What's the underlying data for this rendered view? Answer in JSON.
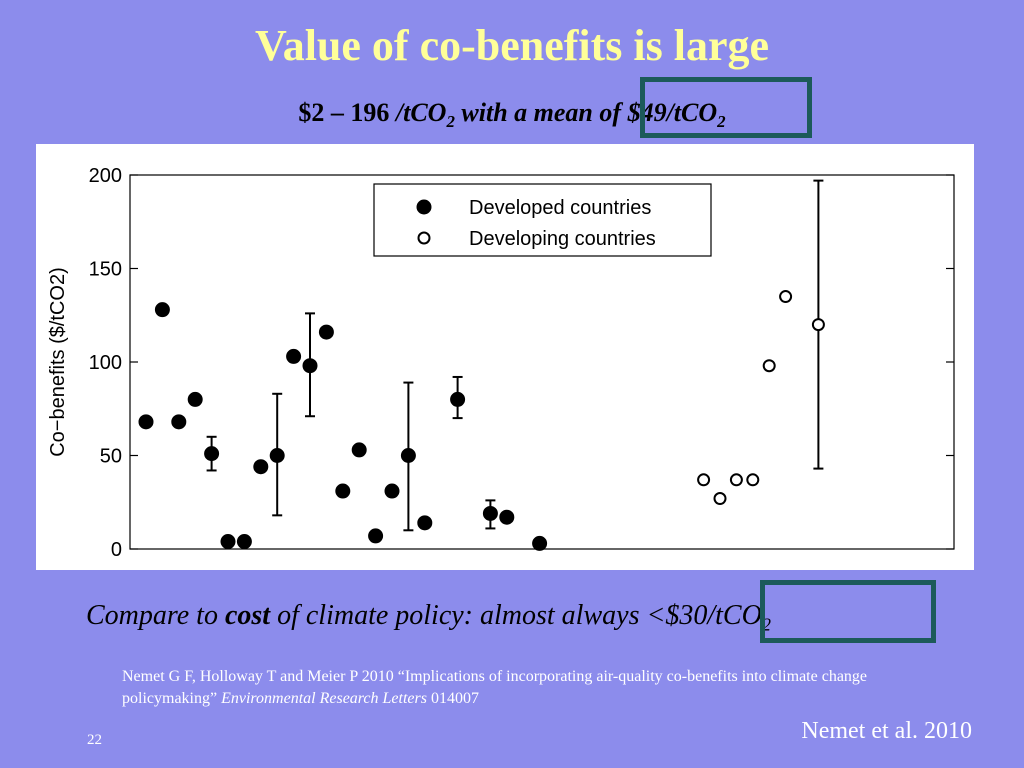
{
  "slide": {
    "title": "Value of co-benefits is large",
    "subtitle": {
      "range": "$2 – 196",
      "unit_1": " /tCO",
      "sub": "2",
      "middle": " with a mean of ",
      "mean": "$49/tCO",
      "mean_sub": "2"
    },
    "compare": {
      "prefix": "Compare to ",
      "bold": "cost",
      "middle": " of climate policy: almost always ",
      "value": "<$30/tCO",
      "value_sub": "2"
    },
    "citation": {
      "text": "Nemet G F, Holloway T and Meier P 2010 “Implications of incorporating air-quality co-benefits into climate change policymaking” ",
      "journal": "Environmental Research Letters",
      "number": "014007"
    },
    "attribution": "Nemet et al. 2010",
    "page_number": "22",
    "colors": {
      "background": "#8c8cec",
      "title": "#ffff99",
      "highlight_box": "#1c5a5a"
    }
  },
  "chart_data": {
    "type": "scatter",
    "ylabel": "Co−benefits ($/tCO2)",
    "ylim": [
      0,
      200
    ],
    "yticks": [
      0,
      50,
      100,
      150,
      200
    ],
    "xlim": [
      0,
      50
    ],
    "legend": {
      "placement": "top-center",
      "entries": [
        "Developed countries",
        "Developing countries"
      ]
    },
    "series": [
      {
        "name": "Developed countries",
        "marker": "filled-circle",
        "points": [
          {
            "x": 1,
            "y": 68
          },
          {
            "x": 2,
            "y": 128
          },
          {
            "x": 3,
            "y": 68
          },
          {
            "x": 4,
            "y": 80
          },
          {
            "x": 5,
            "y": 51,
            "lo": 42,
            "hi": 60
          },
          {
            "x": 6,
            "y": 4
          },
          {
            "x": 7,
            "y": 4
          },
          {
            "x": 8,
            "y": 44
          },
          {
            "x": 9,
            "y": 50,
            "lo": 18,
            "hi": 83
          },
          {
            "x": 10,
            "y": 103
          },
          {
            "x": 11,
            "y": 98,
            "lo": 71,
            "hi": 126
          },
          {
            "x": 12,
            "y": 116
          },
          {
            "x": 13,
            "y": 31
          },
          {
            "x": 14,
            "y": 53
          },
          {
            "x": 15,
            "y": 7
          },
          {
            "x": 16,
            "y": 31
          },
          {
            "x": 17,
            "y": 50,
            "lo": 10,
            "hi": 89
          },
          {
            "x": 18,
            "y": 14
          },
          {
            "x": 20,
            "y": 80,
            "lo": 70,
            "hi": 92
          },
          {
            "x": 22,
            "y": 19,
            "lo": 11,
            "hi": 26
          },
          {
            "x": 23,
            "y": 17
          },
          {
            "x": 25,
            "y": 3
          }
        ]
      },
      {
        "name": "Developing countries",
        "marker": "open-circle",
        "points": [
          {
            "x": 35,
            "y": 37
          },
          {
            "x": 36,
            "y": 27
          },
          {
            "x": 37,
            "y": 37
          },
          {
            "x": 38,
            "y": 37
          },
          {
            "x": 39,
            "y": 98
          },
          {
            "x": 40,
            "y": 135
          },
          {
            "x": 42,
            "y": 120,
            "lo": 43,
            "hi": 197
          }
        ]
      }
    ]
  }
}
